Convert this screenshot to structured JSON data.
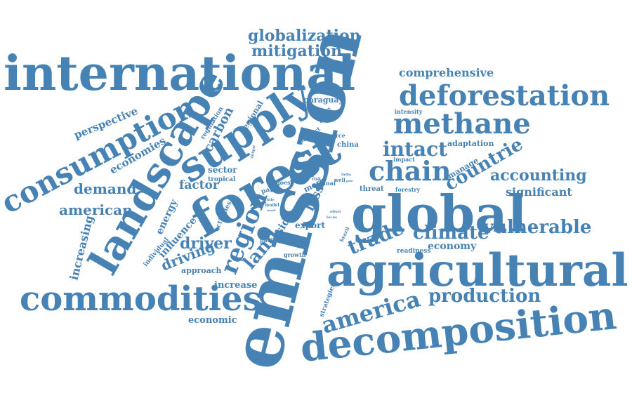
{
  "style": {
    "word_color": "#4682b4",
    "background": "#ffffff"
  },
  "words": {
    "emission": "emission",
    "international": "international",
    "agricultural": "agricultural",
    "decomposition": "decomposition",
    "global": "global",
    "forest": "forest",
    "landscape": "landscape",
    "supply": "supply",
    "commodities": "commodities",
    "deforestation": "deforestation",
    "consumption": "consumption",
    "methane": "methane",
    "chain": "chain",
    "region": "region",
    "america": "america",
    "trade": "trade",
    "intact": "intact",
    "climate": "climate",
    "vulnerable": "vulnerable",
    "production": "production",
    "countrie": "countrie",
    "globalization": "globalization",
    "mitigation": "mitigation",
    "accounting": "accounting",
    "land": "land",
    "driver": "driver",
    "demand": "demand",
    "american": "american",
    "economies": "economies",
    "perspective": "perspective",
    "comprehensive": "comprehensive",
    "significant": "significant",
    "carbon": "carbon",
    "driving": "driving",
    "increasing": "increasing",
    "influence": "influence",
    "energy": "energy",
    "factor": "factor",
    "sector": "sector",
    "economy": "economy",
    "economic": "economic",
    "increase": "increase",
    "approach": "approach",
    "loss": "loss",
    "side": "side",
    "export": "export",
    "paraguay": "paraguay",
    "adaptation": "adaptation",
    "manage": "manage",
    "regional": "regional",
    "regulation": "regulation",
    "tropical": "tropical",
    "activities": "activities",
    "individual": "individual",
    "pacific": "pacific",
    "growth": "growth",
    "readiness": "readiness",
    "strategies": "strategies",
    "threat": "threat",
    "forestry": "forestry",
    "impact": "impact",
    "intensity": "intensity",
    "china": "china",
    "source": "source",
    "product": "product",
    "country": "country",
    "russia": "russia",
    "paper": "paper",
    "goes": "goes",
    "more": "more",
    "final": "final",
    "risk": "risk",
    "well": "well",
    "india": "india",
    "japan": "japan",
    "chile": "chile",
    "model": "model",
    "effort": "effort",
    "focus": "focus",
    "brazil": "brazil",
    "unique": "unique",
    "mostl": "mostl",
    "pole": "pole"
  }
}
